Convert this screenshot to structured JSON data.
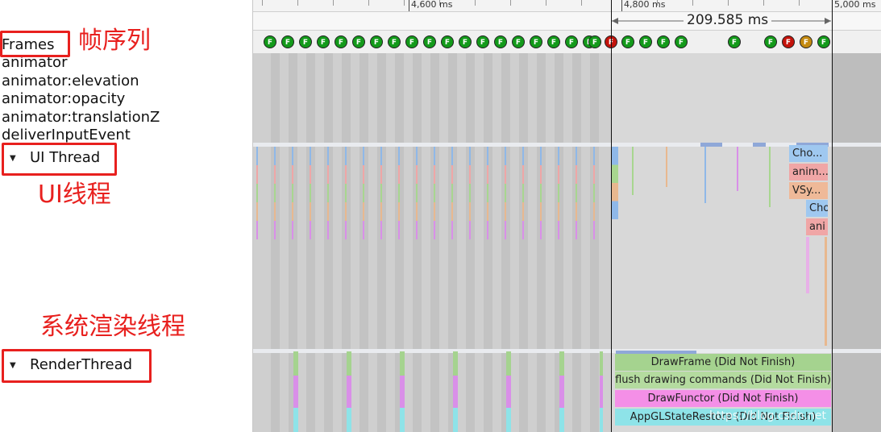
{
  "left_panel": {
    "tracks": [
      "Frames",
      "animator",
      "animator:elevation",
      "animator:opacity",
      "animator:translationZ",
      "deliverInputEvent"
    ],
    "ui_thread": "UI Thread",
    "render_thread": "RenderThread"
  },
  "annotations": {
    "frames": "帧序列",
    "ui_thread": "UI线程",
    "render_thread": "系统渲染线程"
  },
  "ruler": {
    "labels": [
      "4,600 ms",
      "4,800 ms",
      "5,000 ms"
    ],
    "selection_duration": "209.585 ms"
  },
  "frames": {
    "label": "F",
    "statuses": [
      "green",
      "green",
      "green",
      "green",
      "green",
      "green",
      "green",
      "green",
      "green",
      "green",
      "green",
      "green",
      "green",
      "green",
      "green",
      "green",
      "green",
      "green",
      "red",
      "green",
      "green",
      "green",
      "green",
      "green",
      "green",
      "red",
      "orange",
      "green"
    ]
  },
  "ui_slices": [
    "Cho...",
    "anim...",
    "VSy...",
    "Cho",
    "ani"
  ],
  "render_slices": [
    "DrawFrame (Did Not Finish)",
    "flush drawing commands (Did Not Finish)",
    "DrawFunctor (Did Not Finish)",
    "AppGLStateRestore (Did Not Finish)"
  ],
  "watermark": "https://blog.csdn.net",
  "colors": {
    "frame_green": "#139a1a",
    "frame_red": "#c4130b",
    "frame_orange": "#c48a10",
    "annotation_red": "#e8201e",
    "drawframe": "#a5d38f",
    "drawfunctor": "#f48fe7",
    "glrestore": "#8ee3e8"
  }
}
